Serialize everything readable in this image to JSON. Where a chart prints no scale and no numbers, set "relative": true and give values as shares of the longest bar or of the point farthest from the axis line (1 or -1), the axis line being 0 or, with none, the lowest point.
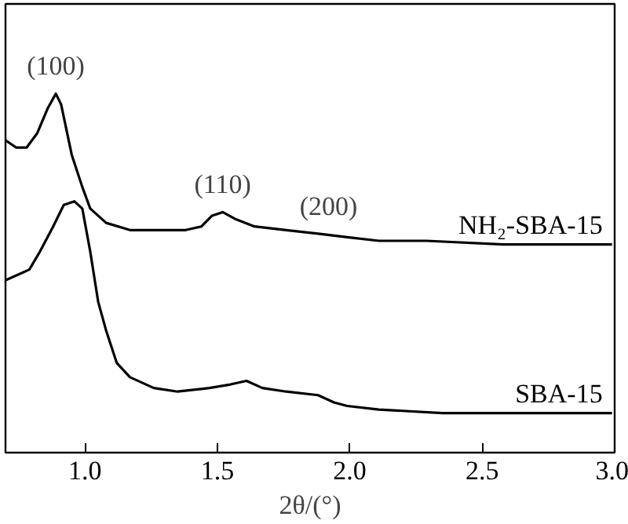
{
  "chart_data": {
    "type": "line",
    "relative": true,
    "xlabel": "2θ/(°)",
    "xlim": [
      0.7,
      3.0
    ],
    "xticks": [
      {
        "value": 1.0,
        "label": "1.0"
      },
      {
        "value": 1.5,
        "label": "1.5"
      },
      {
        "value": 2.0,
        "label": "2.0"
      },
      {
        "value": 2.5,
        "label": "2.5"
      },
      {
        "value": 3.0,
        "label": "3.0"
      }
    ],
    "tick_labels": "x",
    "grid": false,
    "legend": false,
    "marker": "none",
    "line_style": "solid",
    "series": [
      {
        "name": "NH₂-SBA-15",
        "color": "#000000",
        "x": [
          0.7,
          0.74,
          0.78,
          0.82,
          0.86,
          0.89,
          0.91,
          0.95,
          0.99,
          1.02,
          1.08,
          1.17,
          1.29,
          1.38,
          1.44,
          1.48,
          1.52,
          1.57,
          1.64,
          1.76,
          1.88,
          1.99,
          2.11,
          2.29,
          2.58,
          2.99
        ],
        "values": [
          0.87,
          0.85,
          0.85,
          0.89,
          0.96,
          1.0,
          0.97,
          0.83,
          0.74,
          0.68,
          0.64,
          0.62,
          0.62,
          0.62,
          0.63,
          0.66,
          0.67,
          0.65,
          0.63,
          0.62,
          0.61,
          0.6,
          0.59,
          0.59,
          0.58,
          0.58
        ]
      },
      {
        "name": "SBA-15",
        "color": "#000000",
        "x": [
          0.7,
          0.76,
          0.79,
          0.83,
          0.88,
          0.92,
          0.96,
          0.99,
          1.02,
          1.05,
          1.08,
          1.12,
          1.17,
          1.26,
          1.35,
          1.47,
          1.55,
          1.61,
          1.67,
          1.76,
          1.88,
          1.94,
          1.99,
          2.11,
          2.35,
          2.58,
          2.99
        ],
        "values": [
          0.48,
          0.5,
          0.51,
          0.56,
          0.63,
          0.69,
          0.7,
          0.68,
          0.56,
          0.42,
          0.34,
          0.25,
          0.21,
          0.18,
          0.17,
          0.18,
          0.19,
          0.2,
          0.18,
          0.17,
          0.16,
          0.14,
          0.13,
          0.12,
          0.11,
          0.11,
          0.11
        ]
      }
    ],
    "annotations": [
      {
        "text": "(100)",
        "x": 0.89,
        "y": 1.0
      },
      {
        "text": "(110)",
        "x": 1.52,
        "y": 0.67
      },
      {
        "text": "(200)",
        "x": 1.92,
        "y": 0.61
      }
    ]
  }
}
